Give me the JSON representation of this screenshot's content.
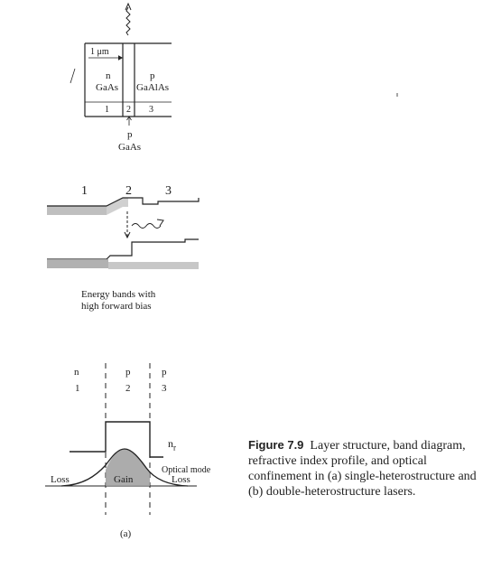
{
  "figure": {
    "number": "Figure 7.9",
    "caption": "Layer structure, band diagram, refractive index profile, and optical confinement in (a) single-heterostructure and (b) double-heterostructure lasers.",
    "subfigure_label": "(a)"
  },
  "layer_structure": {
    "thickness_label": "1 μm",
    "region_n_type": "n",
    "region_n_material": "GaAs",
    "region_p_type": "p",
    "region_p_material": "GaAlAs",
    "bottom_type": "p",
    "bottom_material": "GaAs",
    "region_numbers": [
      "1",
      "2",
      "3"
    ]
  },
  "band_diagram": {
    "region_numbers": [
      "1",
      "2",
      "3"
    ],
    "note_line1": "Energy bands with",
    "note_line2": "high forward bias"
  },
  "index_profile": {
    "types": [
      "n",
      "p",
      "p"
    ],
    "region_numbers": [
      "1",
      "2",
      "3"
    ],
    "nr_label": "n",
    "nr_subscript": "r",
    "optical_mode_label": "Optical mode",
    "loss_left": "Loss",
    "gain_label": "Gain",
    "loss_right": "Loss"
  }
}
